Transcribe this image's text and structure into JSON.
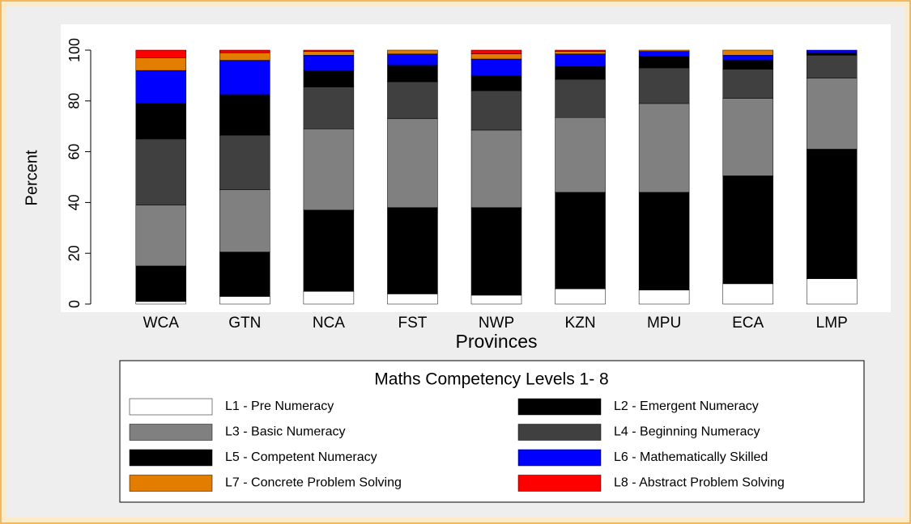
{
  "chart_data": {
    "type": "stacked_bar",
    "categories": [
      "WCA",
      "GTN",
      "NCA",
      "FST",
      "NWP",
      "KZN",
      "MPU",
      "ECA",
      "LMP"
    ],
    "x_label": "Provinces",
    "y_label": "Percent",
    "ylim": [
      0,
      100
    ],
    "yticks": [
      0,
      20,
      40,
      60,
      80,
      100
    ],
    "grid": false,
    "legend_title": "Maths Competency Levels 1- 8",
    "series": [
      {
        "name": "L1 - Pre Numeracy",
        "color": "#ffffff",
        "values": [
          1,
          3,
          5,
          4,
          3.5,
          6,
          5.5,
          8,
          10
        ]
      },
      {
        "name": "L2 - Emergent Numeracy",
        "color": "#000000",
        "values": [
          14,
          17.5,
          32,
          34,
          34.5,
          38,
          38.5,
          42.5,
          51
        ]
      },
      {
        "name": "L3 - Basic Numeracy",
        "color": "#808080",
        "values": [
          24,
          24.5,
          32,
          35,
          30.5,
          29.5,
          35,
          30.5,
          28
        ]
      },
      {
        "name": "L4 - Beginning Numeracy",
        "color": "#404040",
        "values": [
          26,
          21.5,
          16.5,
          14.5,
          15.5,
          15,
          14,
          11.5,
          9
        ]
      },
      {
        "name": "L5 - Competent Numeracy",
        "color": "#000000",
        "values": [
          14,
          16,
          6.5,
          6.5,
          6,
          5,
          4.5,
          3.5,
          1
        ]
      },
      {
        "name": "L6 - Mathematically Skilled",
        "color": "#0000ff",
        "values": [
          13,
          13.5,
          6,
          4.5,
          6.5,
          5,
          2,
          2,
          1
        ]
      },
      {
        "name": "L7 - Concrete Problem Solving",
        "color": "#e27d00",
        "values": [
          5,
          3,
          1.5,
          1.5,
          2,
          1,
          0.5,
          2,
          0
        ]
      },
      {
        "name": "L8 - Abstract Problem Solving",
        "color": "#ff0000",
        "values": [
          3,
          1,
          0.5,
          0,
          1.5,
          0.5,
          0,
          0,
          0
        ]
      }
    ]
  }
}
